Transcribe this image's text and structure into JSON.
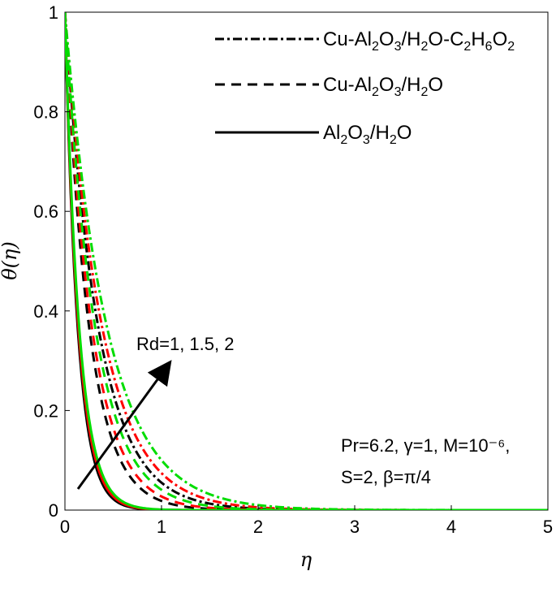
{
  "chart_data": {
    "type": "line",
    "xlabel": "η",
    "ylabel": "θ(η)",
    "xlim": [
      0,
      5
    ],
    "ylim": [
      0,
      1
    ],
    "xticks": [
      "0",
      "1",
      "2",
      "3",
      "4",
      "5"
    ],
    "yticks": [
      "0",
      "0.2",
      "0.4",
      "0.6",
      "0.8",
      "1"
    ],
    "grid": false,
    "legend_position": "top-right",
    "legend": [
      {
        "label": "Cu-Al2O3/H2O-C2H6O2",
        "style": "dashdot"
      },
      {
        "label": "Cu-Al2O3/H2O",
        "style": "dashed"
      },
      {
        "label": "Al2O3/H2O",
        "style": "solid"
      }
    ],
    "rd_values": [
      1,
      1.5,
      2
    ],
    "colors": {
      "Rd=1": "#000000",
      "Rd=1.5": "#ff0000",
      "Rd=2": "#00dd00"
    },
    "series": [
      {
        "fluid": "Cu-Al2O3/H2O-C2H6O2",
        "rd": 1,
        "decay_rate": 2.9
      },
      {
        "fluid": "Cu-Al2O3/H2O-C2H6O2",
        "rd": 1.5,
        "decay_rate": 2.6
      },
      {
        "fluid": "Cu-Al2O3/H2O-C2H6O2",
        "rd": 2,
        "decay_rate": 2.3
      },
      {
        "fluid": "Cu-Al2O3/H2O",
        "rd": 1,
        "decay_rate": 4.0
      },
      {
        "fluid": "Cu-Al2O3/H2O",
        "rd": 1.5,
        "decay_rate": 3.6
      },
      {
        "fluid": "Cu-Al2O3/H2O",
        "rd": 2,
        "decay_rate": 3.2
      },
      {
        "fluid": "Al2O3/H2O",
        "rd": 1,
        "decay_rate": 7.6
      },
      {
        "fluid": "Al2O3/H2O",
        "rd": 1.5,
        "decay_rate": 7.2
      },
      {
        "fluid": "Al2O3/H2O",
        "rd": 2,
        "decay_rate": 6.8
      }
    ],
    "annotations": {
      "arrow_label": "Rd=1, 1.5, 2",
      "params_line1": "Pr=6.2, γ=1, M=10⁻⁶,",
      "params_line2": "S=2, β=π/4"
    }
  }
}
